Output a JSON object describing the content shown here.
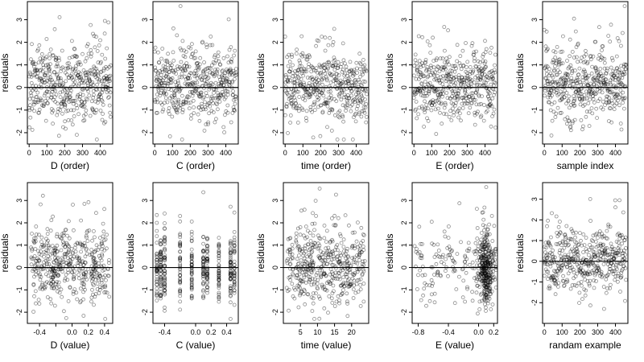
{
  "figure": {
    "background": "#ffffff",
    "point_color": "#000000"
  },
  "chart_data": [
    {
      "type": "scatter",
      "id": "p1",
      "title": "",
      "xlabel": "D (order)",
      "ylabel": "residuals",
      "xlim": [
        -10,
        470
      ],
      "ylim": [
        -2.5,
        3.8
      ],
      "x_ticks": [
        0,
        100,
        200,
        300,
        400
      ],
      "y_ticks": [
        -2,
        -1,
        0,
        1,
        2,
        3
      ],
      "ref_line_y": 0,
      "mode": "order",
      "n": 460,
      "seed": 11
    },
    {
      "type": "scatter",
      "id": "p2",
      "title": "",
      "xlabel": "C (order)",
      "ylabel": "residuals",
      "xlim": [
        -10,
        470
      ],
      "ylim": [
        -2.5,
        3.8
      ],
      "x_ticks": [
        0,
        100,
        200,
        300,
        400
      ],
      "y_ticks": [
        -2,
        -1,
        0,
        1,
        2,
        3
      ],
      "ref_line_y": 0,
      "mode": "order",
      "n": 460,
      "seed": 23
    },
    {
      "type": "scatter",
      "id": "p3",
      "title": "",
      "xlabel": "time (order)",
      "ylabel": "residuals",
      "xlim": [
        -10,
        470
      ],
      "ylim": [
        -2.5,
        3.8
      ],
      "x_ticks": [
        0,
        100,
        200,
        300,
        400
      ],
      "y_ticks": [
        -2,
        -1,
        0,
        1,
        2,
        3
      ],
      "ref_line_y": 0,
      "mode": "order",
      "n": 460,
      "seed": 37
    },
    {
      "type": "scatter",
      "id": "p4",
      "title": "",
      "xlabel": "E (order)",
      "ylabel": "residuals",
      "xlim": [
        -10,
        470
      ],
      "ylim": [
        -2.5,
        3.8
      ],
      "x_ticks": [
        0,
        100,
        200,
        300,
        400
      ],
      "y_ticks": [
        -2,
        -1,
        0,
        1,
        2,
        3
      ],
      "ref_line_y": 0,
      "mode": "order",
      "n": 460,
      "seed": 41
    },
    {
      "type": "scatter",
      "id": "p5",
      "title": "",
      "xlabel": "sample index",
      "ylabel": "residuals",
      "xlim": [
        -10,
        470
      ],
      "ylim": [
        -2.5,
        3.8
      ],
      "x_ticks": [
        0,
        100,
        200,
        300,
        400
      ],
      "y_ticks": [
        -2,
        -1,
        0,
        1,
        2,
        3
      ],
      "ref_line_y": 0,
      "mode": "order",
      "n": 460,
      "seed": 53
    },
    {
      "type": "scatter",
      "id": "p6",
      "title": "",
      "xlabel": "D (value)",
      "ylabel": "residuals",
      "xlim": [
        -0.55,
        0.5
      ],
      "ylim": [
        -2.5,
        3.8
      ],
      "x_ticks": [
        -0.4,
        -0.2,
        0.0,
        0.2,
        0.4
      ],
      "x_tick_labels": [
        "-0.4",
        "",
        "0.0",
        "0.2",
        "0.4"
      ],
      "y_ticks": [
        -2,
        -1,
        0,
        1,
        2,
        3
      ],
      "ref_line_y": 0,
      "mode": "continuous",
      "n": 460,
      "seed": 61
    },
    {
      "type": "scatter",
      "id": "p7",
      "title": "",
      "xlabel": "C (value)",
      "ylabel": "residuals",
      "xlim": [
        -0.55,
        0.55
      ],
      "ylim": [
        -2.5,
        3.8
      ],
      "x_ticks": [
        -0.4,
        0.0,
        0.2,
        0.4
      ],
      "x_tick_labels": [
        "-0.4",
        "0.0",
        "0.2",
        "0.4"
      ],
      "y_ticks": [
        -2,
        -1,
        0,
        1,
        2,
        3
      ],
      "ref_line_y": 0,
      "mode": "discrete",
      "levels": [
        -0.5,
        -0.45,
        -0.4,
        -0.2,
        -0.05,
        0.1,
        0.15,
        0.3,
        0.45,
        0.5
      ],
      "n": 460,
      "seed": 71
    },
    {
      "type": "scatter",
      "id": "p8",
      "title": "",
      "xlabel": "time (value)",
      "ylabel": "residuals",
      "xlim": [
        0,
        25
      ],
      "ylim": [
        -2.5,
        3.8
      ],
      "x_ticks": [
        5,
        10,
        15,
        20
      ],
      "x_tick_labels": [
        "5",
        "10",
        "15",
        "20"
      ],
      "y_ticks": [
        -2,
        -1,
        0,
        1,
        2,
        3
      ],
      "ref_line_y": 0,
      "mode": "continuous",
      "n": 460,
      "seed": 83
    },
    {
      "type": "scatter",
      "id": "p9",
      "title": "",
      "xlabel": "E (value)",
      "ylabel": "residuals",
      "xlim": [
        -0.88,
        0.25
      ],
      "ylim": [
        -2.5,
        3.8
      ],
      "x_ticks": [
        -0.8,
        -0.4,
        0.0,
        0.2
      ],
      "x_tick_labels": [
        "-0.8",
        "-0.4",
        "0.0",
        "0.2"
      ],
      "y_ticks": [
        -2,
        -1,
        0,
        1,
        2,
        3
      ],
      "ref_line_y": 0,
      "mode": "skewed",
      "n": 460,
      "seed": 97
    },
    {
      "type": "scatter",
      "id": "p10",
      "title": "",
      "xlabel": "randam example",
      "ylabel": "residuals",
      "xlim": [
        -10,
        470
      ],
      "ylim": [
        -3.0,
        3.8
      ],
      "x_ticks": [
        0,
        100,
        200,
        300,
        400
      ],
      "y_ticks": [
        -2,
        -1,
        0,
        1,
        2,
        3
      ],
      "ref_line_y": 0,
      "mode": "order",
      "n": 460,
      "seed": 109
    }
  ]
}
